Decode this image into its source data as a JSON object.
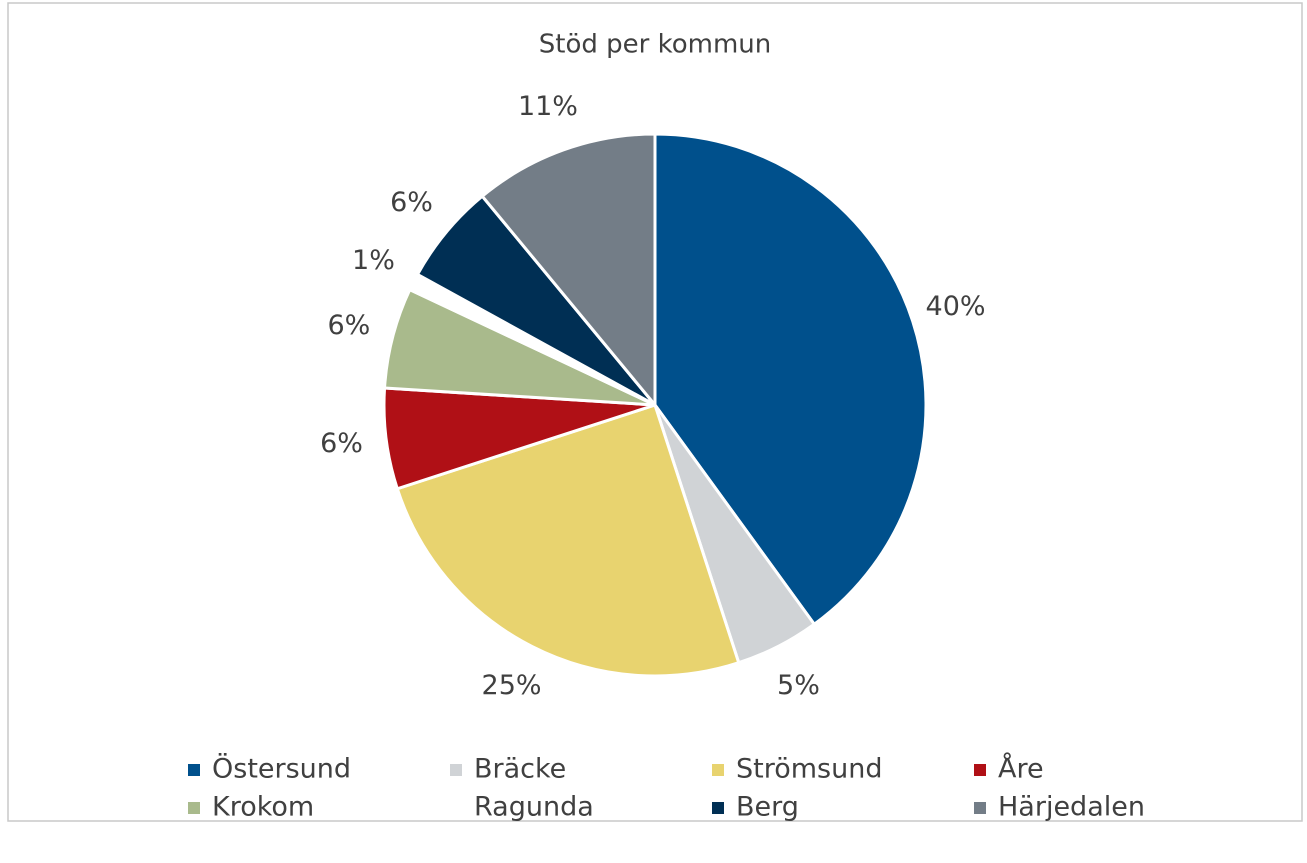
{
  "chart_data": {
    "type": "pie",
    "title": "Stöd per kommun",
    "categories": [
      "Östersund",
      "Bräcke",
      "Strömsund",
      "Åre",
      "Krokom",
      "Ragunda",
      "Berg",
      "Härjedalen"
    ],
    "values": [
      40,
      5,
      25,
      6,
      6,
      1,
      6,
      11
    ],
    "value_labels": [
      "40%",
      "5%",
      "25%",
      "6%",
      "6%",
      "1%",
      "6%",
      "11%"
    ],
    "colors": [
      "#00508c",
      "#d0d3d6",
      "#e8d36f",
      "#b01016",
      "#a9ba8c",
      "#ffffff",
      "#002f54",
      "#737d87"
    ]
  }
}
